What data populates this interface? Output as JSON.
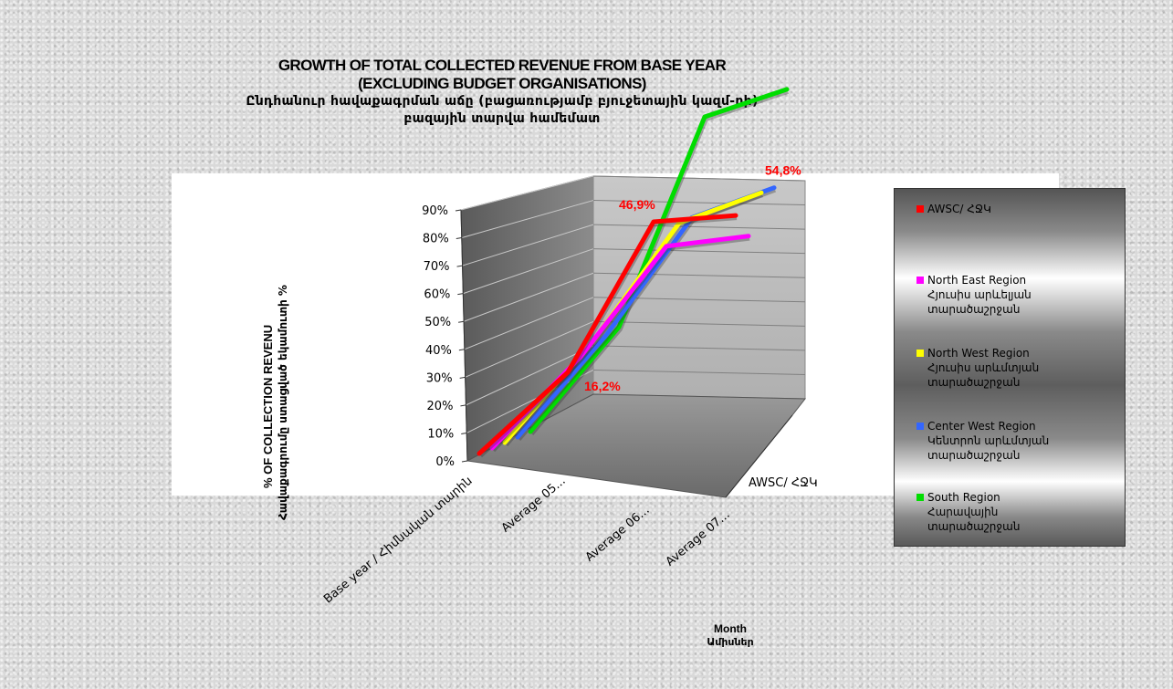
{
  "chart_data": {
    "type": "line",
    "title_lines": [
      "GROWTH OF TOTAL COLLECTED REVENUE FROM BASE YEAR",
      "(EXCLUDING BUDGET  ORGANISATIONS)"
    ],
    "subtitle_lines": [
      "Ընդհանուր հավաքագրման աճը (բացառությամբ բյուջետային կազմ-րի)",
      "բազային տարվա համեմատ"
    ],
    "ylabel": "% OF COLLECTION REVENU",
    "ylabel2": "Հավաքագրումը ստացված եկամուտի %",
    "xlabel": "Month",
    "xlabel2": "Ամիսներ",
    "depth_label": "AWSC/ ՀՋԿ",
    "ylim": [
      0,
      90
    ],
    "y_ticks": [
      "0%",
      "10%",
      "20%",
      "30%",
      "40%",
      "50%",
      "60%",
      "70%",
      "80%",
      "90%"
    ],
    "categories": [
      "Base year / Հիմնական տարին",
      "Average 05...",
      "Average 06...",
      "Average 07..."
    ],
    "series": [
      {
        "name": "AWSC/ ՀՋԿ",
        "color": "#ff0000",
        "values": [
          0,
          16.2,
          46.9,
          50
        ]
      },
      {
        "name": "North East Region",
        "name2": "Հյուսիս արևելյան",
        "name3": "տարածաշրջան",
        "color": "#ff00ff",
        "values": [
          0,
          20,
          35,
          39
        ]
      },
      {
        "name": "North West Region",
        "name2": "Հյուսիս արևմտյան",
        "name3": "տարածաշրջան",
        "color": "#ffff00",
        "values": [
          0,
          24,
          42,
          55
        ]
      },
      {
        "name": "Center West Region",
        "name2": "Կենտրոն արևմտյան",
        "name3": "տարածաշրջան",
        "color": "#3366ff",
        "values": [
          0,
          24,
          42,
          54.8
        ]
      },
      {
        "name": "South Region",
        "name2": "Հարավային",
        "name3": "տարածաշրջան",
        "color": "#00dd00",
        "values": [
          0,
          25,
          80,
          94
        ]
      }
    ],
    "data_labels": [
      {
        "series": 0,
        "index": 1,
        "text": "16,2%"
      },
      {
        "series": 0,
        "index": 2,
        "text": "46,9%"
      },
      {
        "series": 3,
        "index": 3,
        "text": "54,8%"
      }
    ],
    "grid": true,
    "legend_position": "right"
  }
}
